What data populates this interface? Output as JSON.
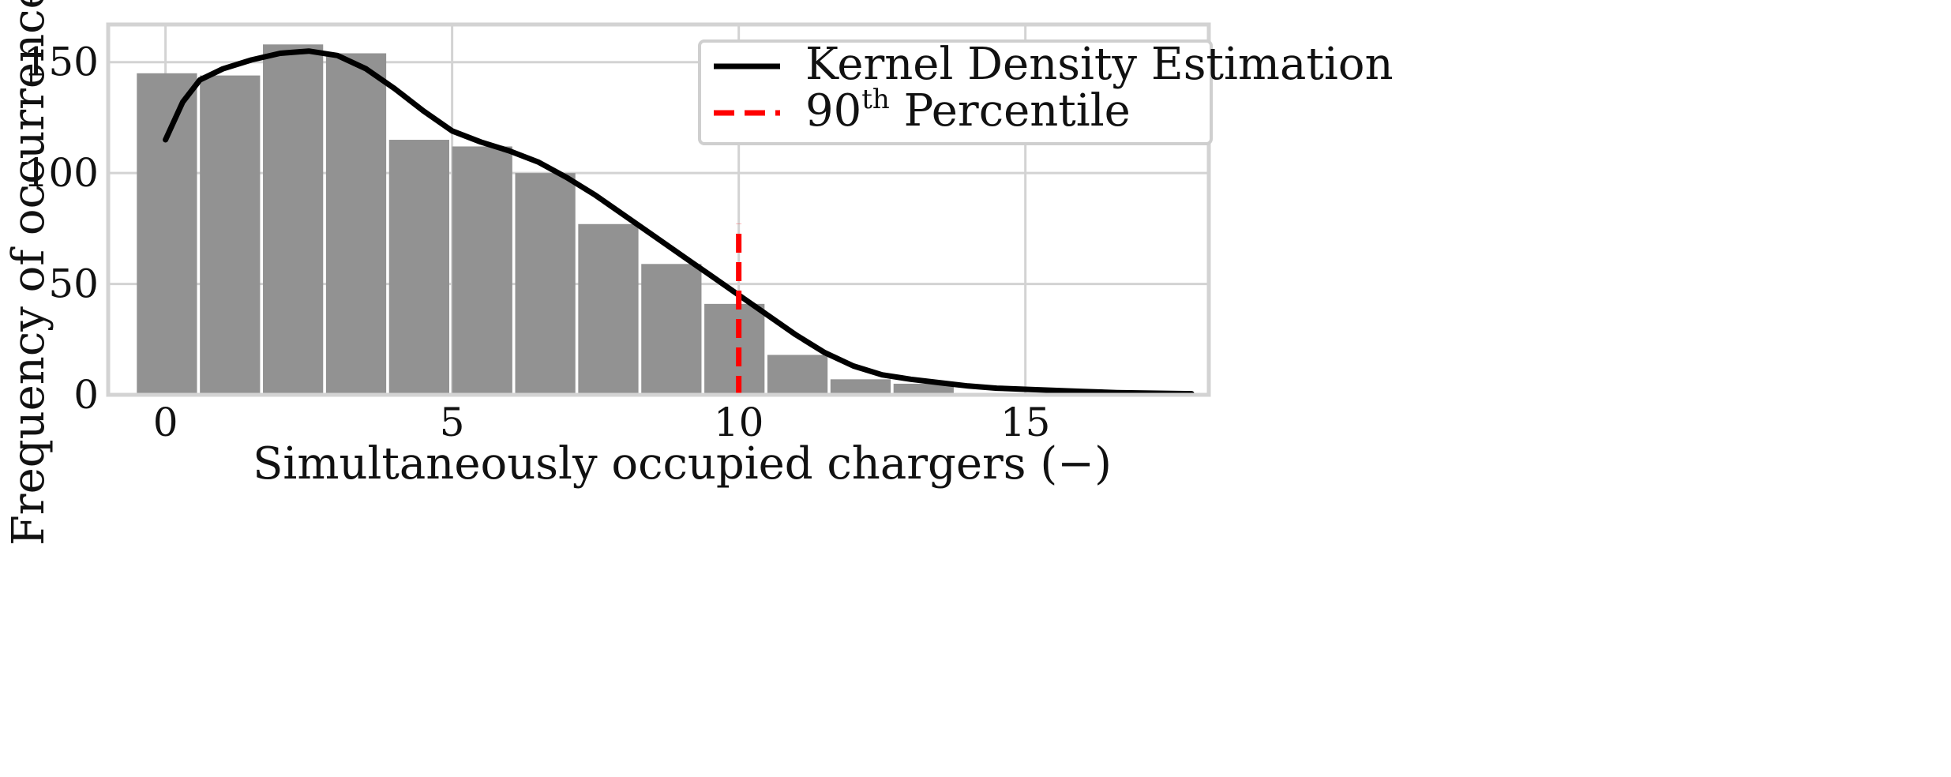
{
  "chart_data": {
    "type": "bar",
    "title": "",
    "xlabel": "Simultaneously occupied chargers (−)",
    "ylabel": "Frequency of occurrence (−)",
    "xlim": [
      -1,
      18.2
    ],
    "ylim": [
      0,
      167
    ],
    "grid": true,
    "legend_position": "top-right",
    "x_ticks": [
      0,
      5,
      10,
      15
    ],
    "x_tick_labels": [
      "0",
      "5",
      "10",
      "15"
    ],
    "y_ticks": [
      0,
      50,
      100,
      150
    ],
    "y_tick_labels": [
      "0",
      "50",
      "100",
      "150"
    ],
    "histogram": {
      "name": "",
      "color": "#929292",
      "bins": [
        {
          "x0": -0.5,
          "x1": 0.55,
          "value": 145
        },
        {
          "x0": 0.6,
          "x1": 1.65,
          "value": 144
        },
        {
          "x0": 1.7,
          "x1": 2.75,
          "value": 158
        },
        {
          "x0": 2.8,
          "x1": 3.85,
          "value": 154
        },
        {
          "x0": 3.9,
          "x1": 4.95,
          "value": 115
        },
        {
          "x0": 5.0,
          "x1": 6.05,
          "value": 112
        },
        {
          "x0": 6.1,
          "x1": 7.15,
          "value": 100
        },
        {
          "x0": 7.2,
          "x1": 8.25,
          "value": 77
        },
        {
          "x0": 8.3,
          "x1": 9.35,
          "value": 59
        },
        {
          "x0": 9.4,
          "x1": 10.45,
          "value": 41
        },
        {
          "x0": 10.5,
          "x1": 11.55,
          "value": 18
        },
        {
          "x0": 11.6,
          "x1": 12.65,
          "value": 7
        },
        {
          "x0": 12.7,
          "x1": 13.75,
          "value": 5
        }
      ]
    },
    "series": [
      {
        "name": "Kernel Density Estimation",
        "type": "line",
        "color": "#000000",
        "dash": "solid",
        "x": [
          0,
          0.3,
          0.6,
          1.0,
          1.5,
          2.0,
          2.5,
          3.0,
          3.5,
          4.0,
          4.5,
          5.0,
          5.5,
          6.0,
          6.5,
          7.0,
          7.5,
          8.0,
          8.5,
          9.0,
          9.5,
          10.0,
          10.5,
          11.0,
          11.5,
          12.0,
          12.5,
          13.0,
          13.5,
          14.0,
          14.5,
          15.0,
          15.5,
          16.0,
          16.6,
          17.9
        ],
        "y": [
          115,
          132,
          142,
          147,
          151,
          154,
          155,
          153,
          147,
          138,
          128,
          119,
          114,
          110,
          105,
          98,
          90,
          81,
          72,
          63,
          54,
          45,
          36,
          27,
          19,
          13,
          9,
          7,
          5.5,
          4,
          3,
          2.5,
          2,
          1.5,
          1,
          0.5
        ]
      },
      {
        "name": "90th Percentile",
        "label_main": "90",
        "label_sup": "th",
        "label_rest": " Percentile",
        "type": "vline",
        "color": "#ff0000",
        "dash": "dashed",
        "x": 10,
        "y": [
          0,
          77
        ]
      }
    ]
  }
}
